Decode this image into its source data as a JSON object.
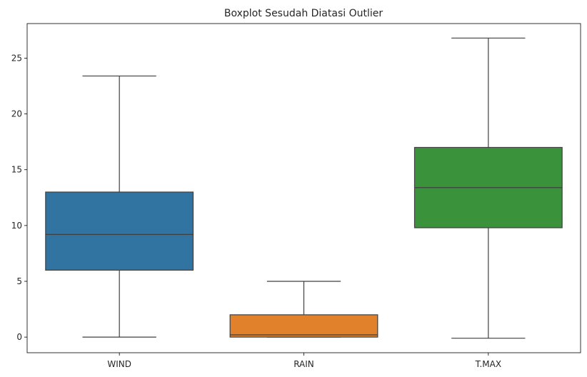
{
  "chart_data": {
    "type": "boxplot",
    "title": "Boxplot Sesudah Diatasi Outlier",
    "xlabel": "",
    "ylabel": "",
    "categories": [
      "WIND",
      "RAIN",
      "T.MAX"
    ],
    "series": [
      {
        "category": "WIND",
        "min": 0.0,
        "q1": 6.0,
        "median": 9.2,
        "q3": 13.0,
        "max": 23.4,
        "color": "#3274a1"
      },
      {
        "category": "RAIN",
        "min": 0.0,
        "q1": 0.0,
        "median": 0.2,
        "q3": 2.0,
        "max": 5.0,
        "color": "#e1812c"
      },
      {
        "category": "T.MAX",
        "min": -0.1,
        "q1": 9.8,
        "median": 13.4,
        "q3": 17.0,
        "max": 26.8,
        "color": "#3a923a"
      }
    ],
    "ylim": [
      -1.4,
      28.1
    ],
    "yticks": [
      0,
      5,
      10,
      15,
      20,
      25
    ],
    "ytick_labels": [
      "0",
      "5",
      "10",
      "15",
      "20",
      "25"
    ],
    "grid": false,
    "legend": "none"
  }
}
